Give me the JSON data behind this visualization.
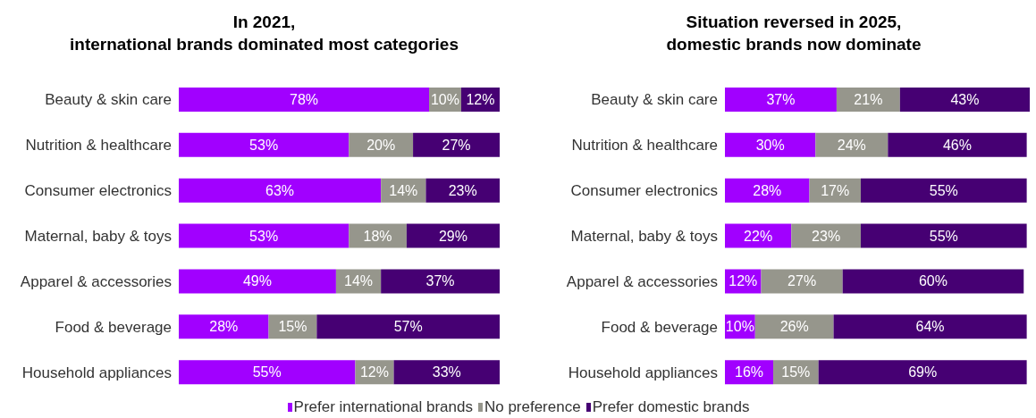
{
  "chart_data": [
    {
      "type": "bar",
      "orientation": "horizontal",
      "stacked": true,
      "title": "In 2021,\ninternational brands dominated most categories",
      "categories": [
        "Beauty & skin care",
        "Nutrition & healthcare",
        "Consumer electronics",
        "Maternal, baby & toys",
        "Apparel & accessories",
        "Food & beverage",
        "Household appliances"
      ],
      "xlim": [
        0,
        100
      ],
      "tick_labels": "y",
      "legend": "bottom",
      "grid": false,
      "series": [
        {
          "name": "Prefer international brands",
          "color": "#a100ff",
          "values": [
            78,
            53,
            63,
            53,
            49,
            28,
            55
          ],
          "value_labels": [
            "78%",
            "53%",
            "63%",
            "53%",
            "49%",
            "28%",
            "55%"
          ]
        },
        {
          "name": "No preference",
          "color": "#96968c",
          "values": [
            10,
            20,
            14,
            18,
            14,
            15,
            12
          ],
          "value_labels": [
            "10%",
            "20%",
            "14%",
            "18%",
            "14%",
            "15%",
            "12%"
          ]
        },
        {
          "name": "Prefer domestic brands",
          "color": "#460073",
          "values": [
            12,
            27,
            23,
            29,
            37,
            57,
            33
          ],
          "value_labels": [
            "12%",
            "27%",
            "23%",
            "29%",
            "37%",
            "57%",
            "33%"
          ]
        }
      ]
    },
    {
      "type": "bar",
      "orientation": "horizontal",
      "stacked": true,
      "title": "Situation reversed in 2025,\ndomestic brands now dominate",
      "categories": [
        "Beauty & skin care",
        "Nutrition & healthcare",
        "Consumer electronics",
        "Maternal, baby & toys",
        "Apparel & accessories",
        "Food & beverage",
        "Household appliances"
      ],
      "xlim": [
        0,
        101
      ],
      "tick_labels": "y",
      "grid": false,
      "series": [
        {
          "color": "#a100ff",
          "values": [
            37,
            30,
            28,
            22,
            12,
            10,
            16
          ],
          "value_labels": [
            "37%",
            "30%",
            "28%",
            "22%",
            "12%",
            "10%",
            "16%"
          ]
        },
        {
          "color": "#96968c",
          "values": [
            21,
            24,
            17,
            23,
            27,
            26,
            15
          ],
          "value_labels": [
            "21%",
            "24%",
            "17%",
            "23%",
            "27%",
            "26%",
            "15%"
          ]
        },
        {
          "color": "#460073",
          "values": [
            43,
            46,
            55,
            55,
            60,
            64,
            69
          ],
          "value_labels": [
            "43%",
            "46%",
            "55%",
            "55%",
            "60%",
            "64%",
            "69%"
          ]
        }
      ]
    }
  ]
}
